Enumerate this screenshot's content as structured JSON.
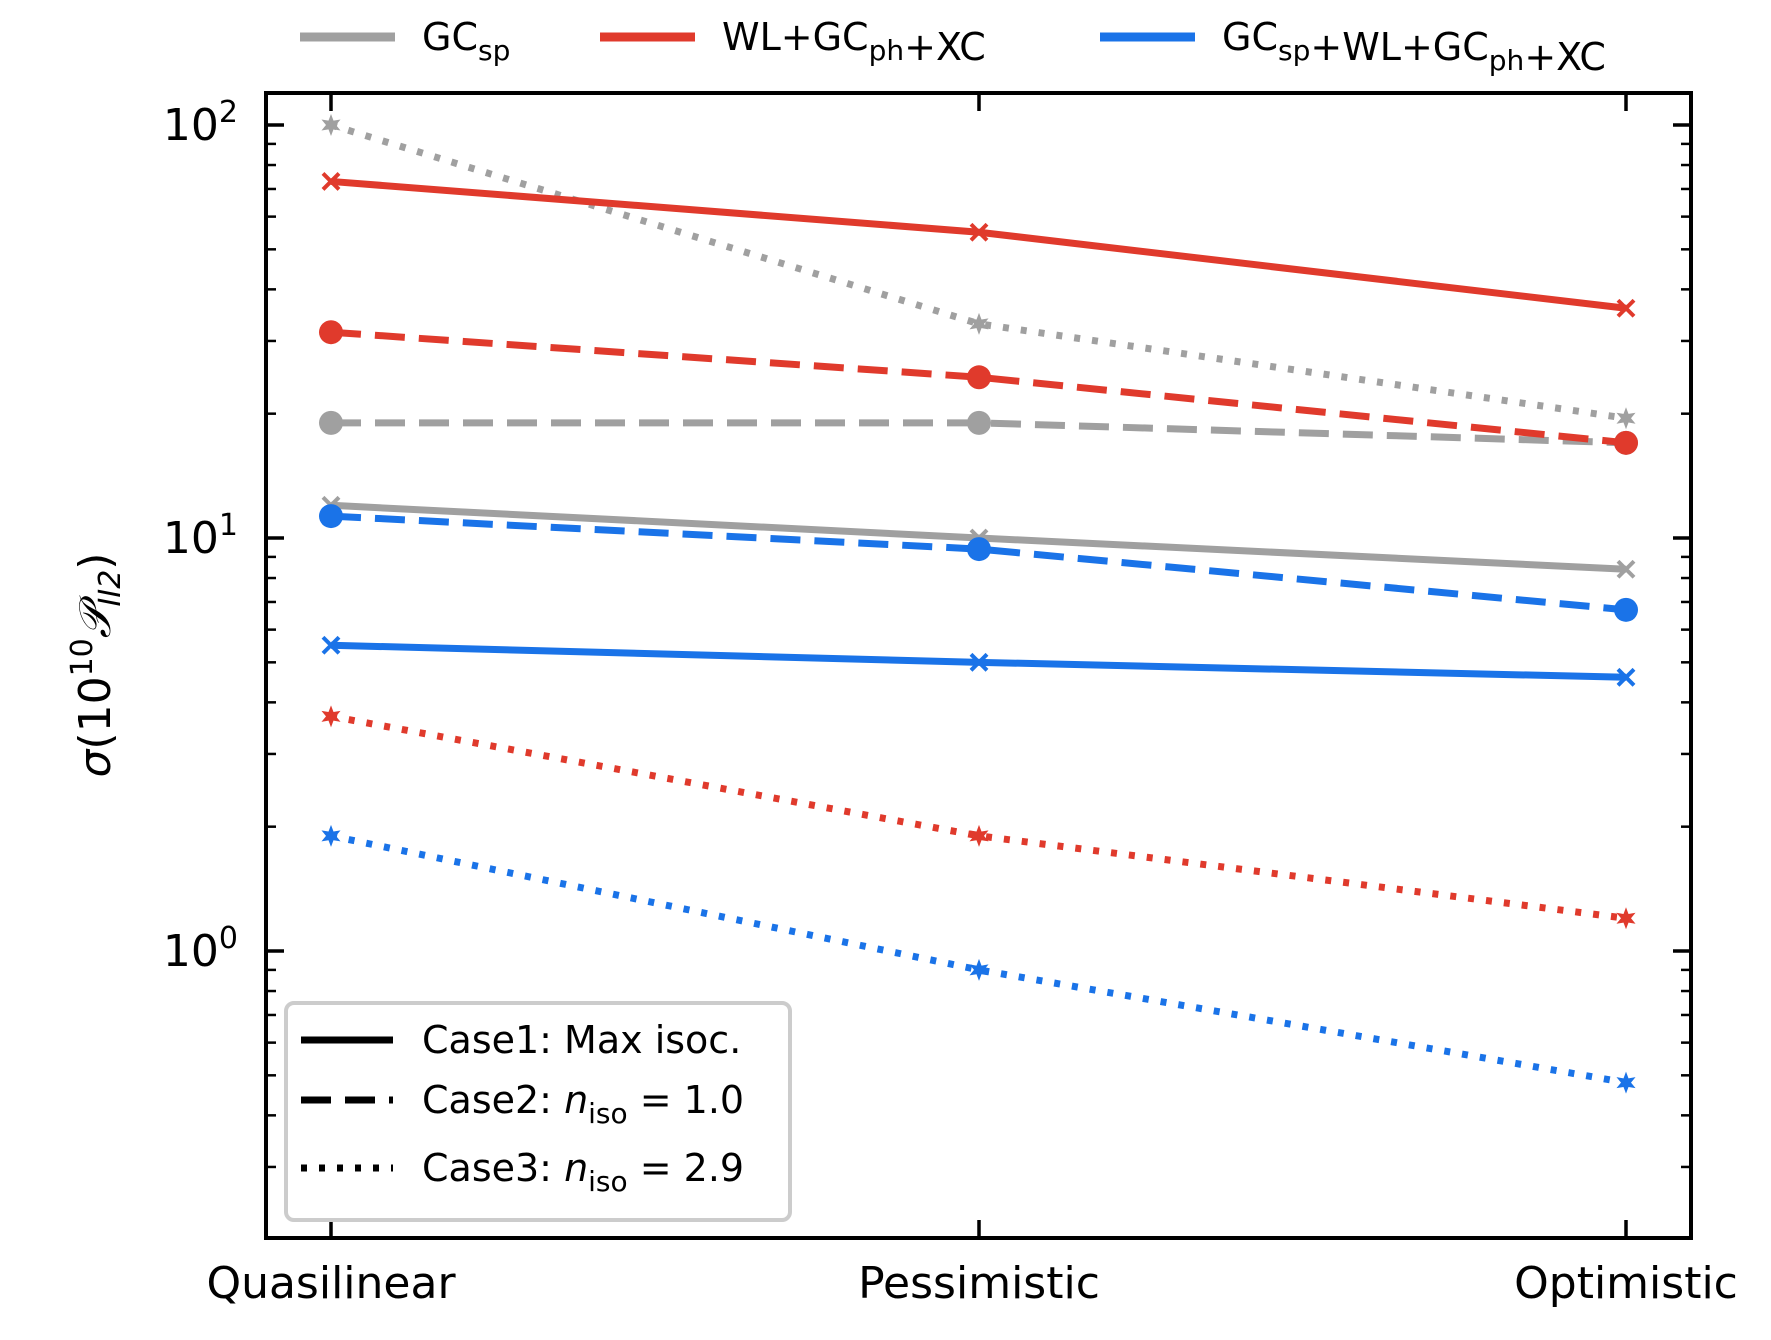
{
  "chart_data": {
    "type": "line",
    "title": "",
    "xlabel": "",
    "ylabel": "σ(10¹⁰𝒫II2)",
    "y_scale": "log",
    "ylim": [
      0.2,
      120
    ],
    "categories": [
      "Quasilinear",
      "Pessimistic",
      "Optimistic"
    ],
    "y_ticks": [
      {
        "value": 1,
        "base": "10",
        "exp": "0"
      },
      {
        "value": 10,
        "base": "10",
        "exp": "1"
      },
      {
        "value": 100,
        "base": "10",
        "exp": "2"
      }
    ],
    "grid": false,
    "probes": [
      {
        "name": "GCsp",
        "base": "GC",
        "sub": "sp",
        "color": "#a0a0a0"
      },
      {
        "name": "WL+GCph+XC",
        "color": "#e03a2c"
      },
      {
        "name": "GCsp+WL+GCph+XC",
        "color": "#1a73e8"
      }
    ],
    "cases": [
      {
        "label": "Case1: Max isoc.",
        "dash": "solid",
        "marker": "x"
      },
      {
        "label": "Case2: n_iso = 1.0",
        "prefix": "Case2: ",
        "var": "n",
        "sub": "iso",
        "value_text": " = 1.0",
        "dash": "dashed",
        "marker": "o"
      },
      {
        "label": "Case3: n_iso = 2.9",
        "prefix": "Case3: ",
        "var": "n",
        "sub": "iso",
        "value_text": " = 2.9",
        "dash": "dotted",
        "marker": "*"
      }
    ],
    "series": [
      {
        "probe": 0,
        "case": 0,
        "values": [
          12.0,
          10.0,
          8.4
        ]
      },
      {
        "probe": 0,
        "case": 1,
        "values": [
          19.0,
          19.0,
          17.0
        ]
      },
      {
        "probe": 0,
        "case": 2,
        "values": [
          100.0,
          33.0,
          19.5
        ]
      },
      {
        "probe": 1,
        "case": 0,
        "values": [
          73.0,
          55.0,
          36.0
        ]
      },
      {
        "probe": 1,
        "case": 1,
        "values": [
          31.5,
          24.5,
          17.0
        ]
      },
      {
        "probe": 1,
        "case": 2,
        "values": [
          3.7,
          1.9,
          1.2
        ]
      },
      {
        "probe": 2,
        "case": 0,
        "values": [
          5.5,
          5.0,
          4.6
        ]
      },
      {
        "probe": 2,
        "case": 1,
        "values": [
          11.3,
          9.4,
          6.7
        ]
      },
      {
        "probe": 2,
        "case": 2,
        "values": [
          1.9,
          0.9,
          0.48
        ]
      }
    ],
    "legend_top": {
      "placement": "above-plot"
    },
    "legend_cases": {
      "placement": "lower-left"
    }
  }
}
